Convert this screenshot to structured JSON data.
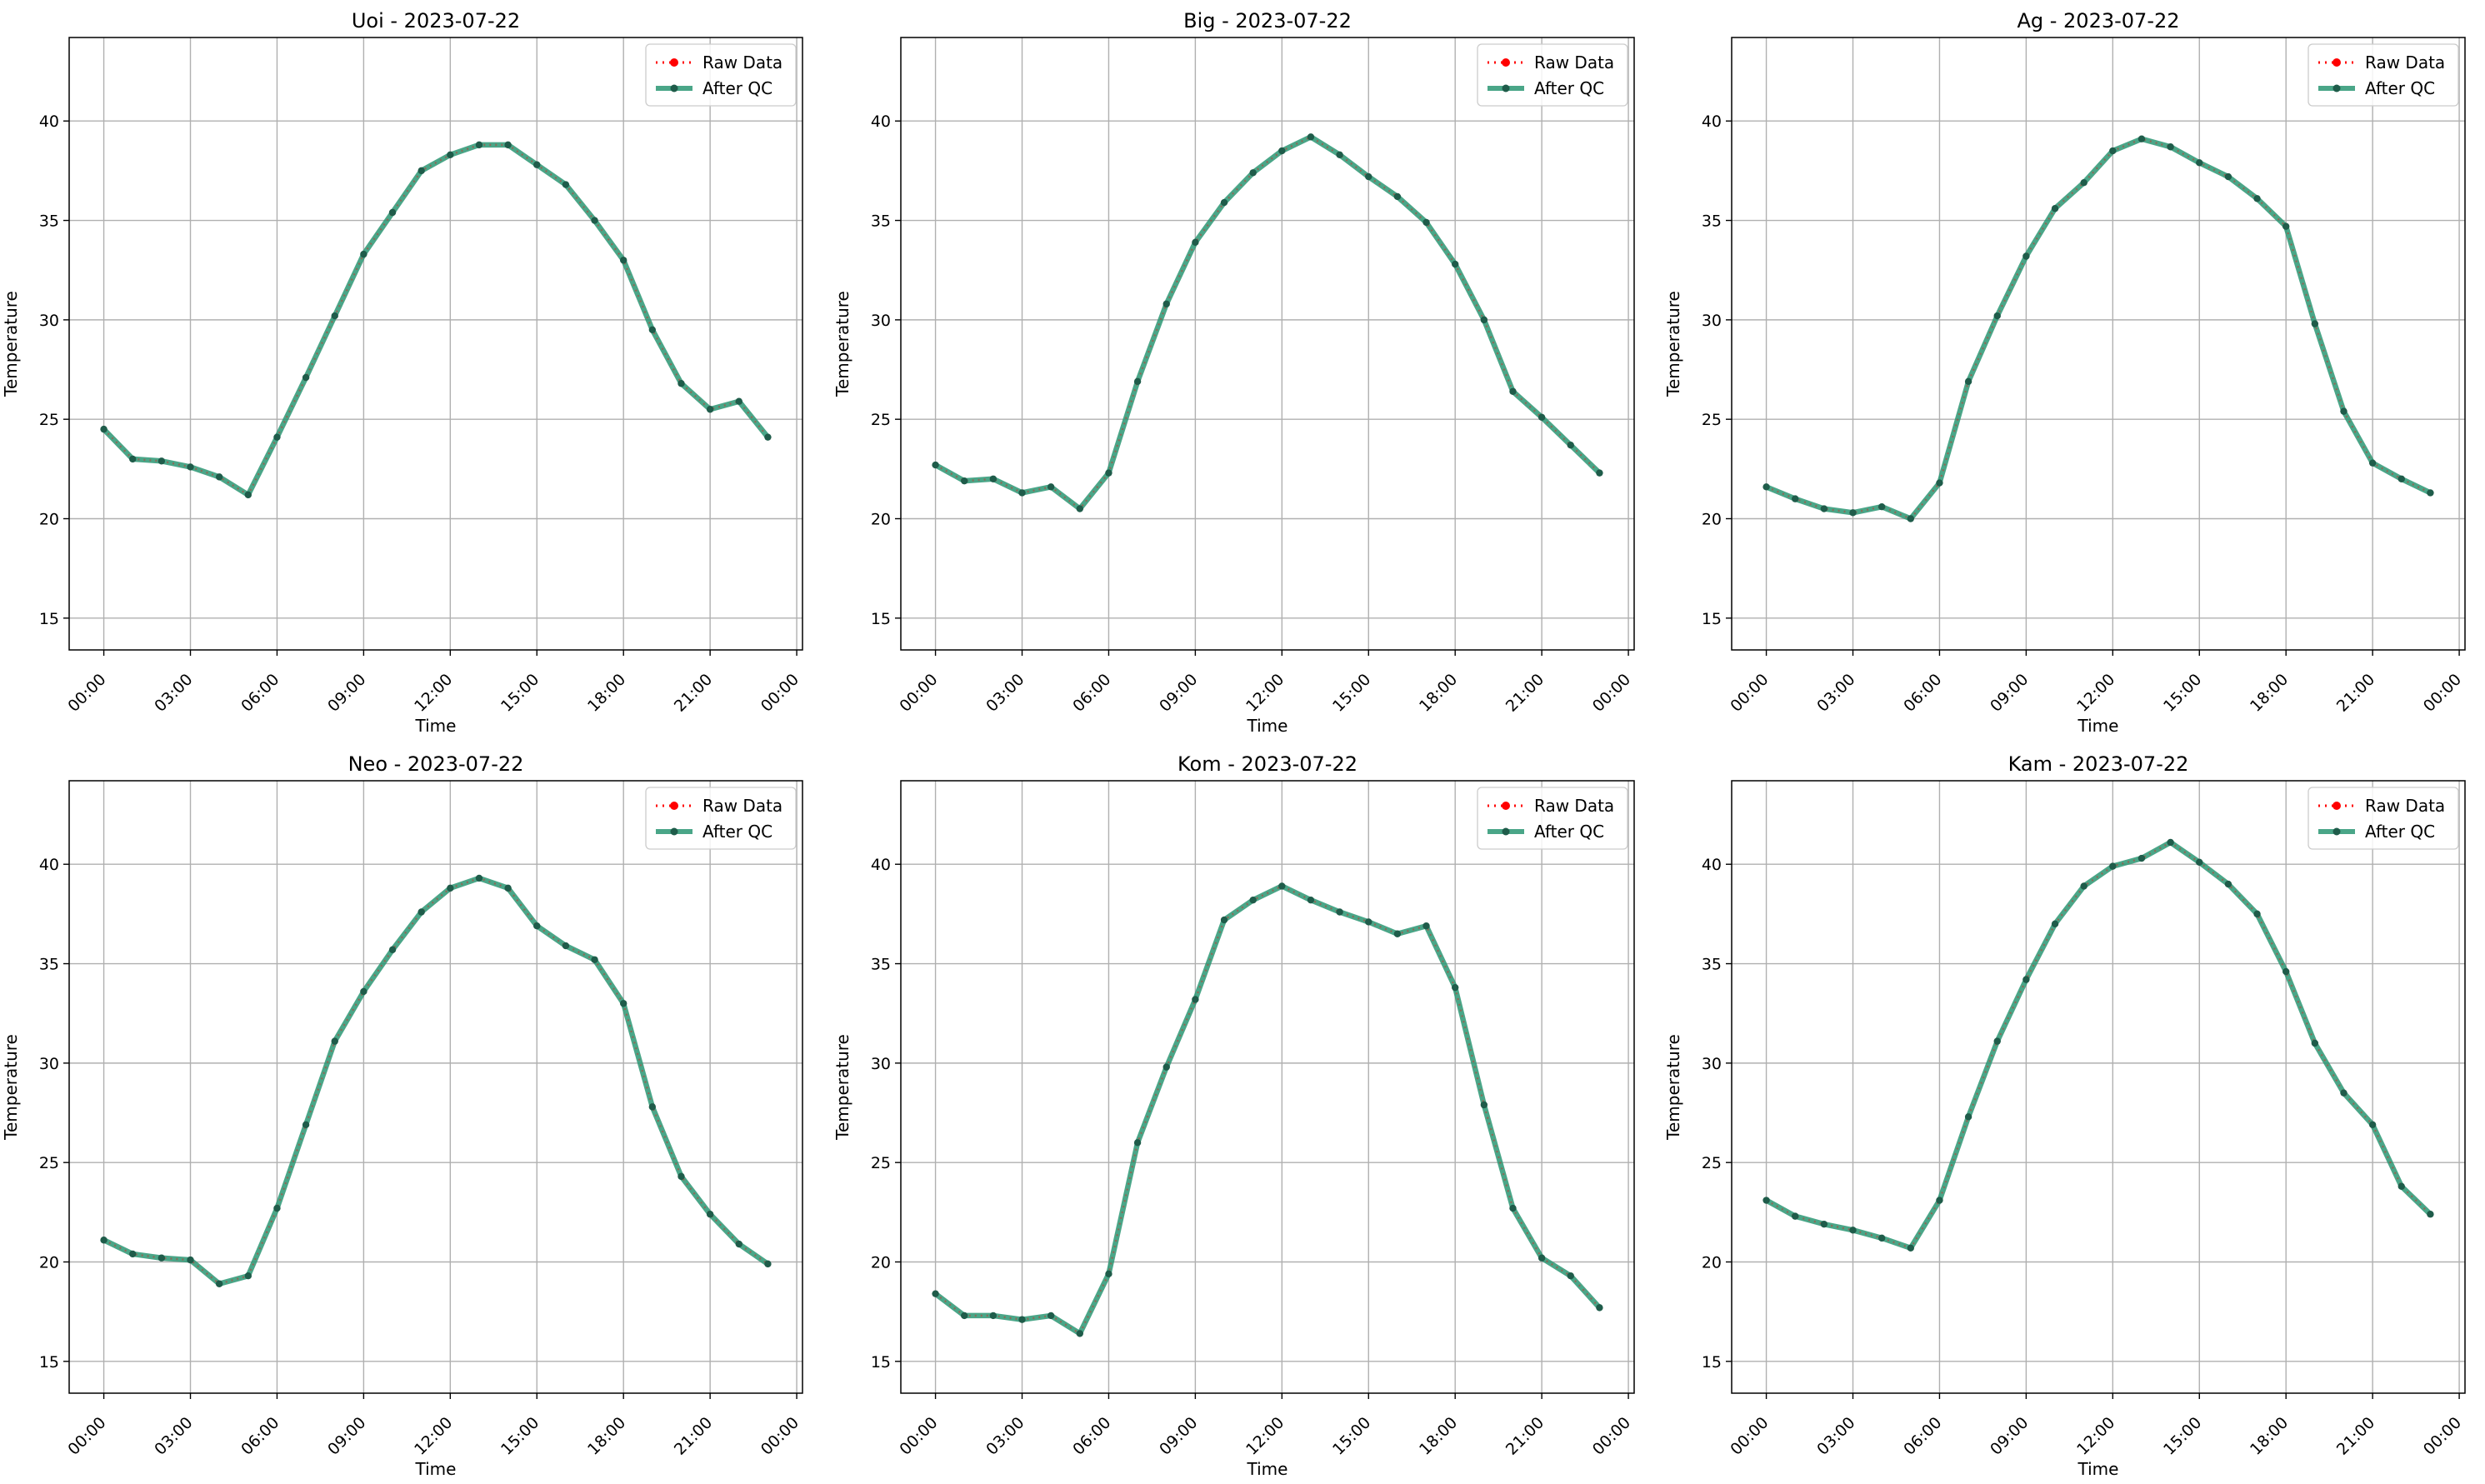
{
  "chart_data": [
    {
      "type": "line",
      "title": "Uoi - 2023-07-22",
      "xlabel": "Time",
      "ylabel": "Temperature",
      "x": [
        "00:00",
        "01:00",
        "02:00",
        "03:00",
        "04:00",
        "05:00",
        "06:00",
        "07:00",
        "08:00",
        "09:00",
        "10:00",
        "11:00",
        "12:00",
        "13:00",
        "14:00",
        "15:00",
        "16:00",
        "17:00",
        "18:00",
        "19:00",
        "20:00",
        "21:00",
        "22:00",
        "23:00"
      ],
      "xticks": [
        "00:00",
        "03:00",
        "06:00",
        "09:00",
        "12:00",
        "15:00",
        "18:00",
        "21:00",
        "00:00"
      ],
      "yticks": [
        "15",
        "20",
        "25",
        "30",
        "35",
        "40"
      ],
      "ylim": [
        13.4,
        44.2
      ],
      "xlim": [
        -1.2,
        24.2
      ],
      "grid": true,
      "legend_position": "top-right",
      "series": [
        {
          "name": "Raw Data",
          "values": [
            24.5,
            23.0,
            22.9,
            22.6,
            22.1,
            21.2,
            24.1,
            27.1,
            30.2,
            33.3,
            35.4,
            37.5,
            38.3,
            38.8,
            38.8,
            37.8,
            36.8,
            35.0,
            33.0,
            29.5,
            26.8,
            25.5,
            25.9,
            24.1
          ]
        },
        {
          "name": "After QC",
          "values": [
            24.5,
            23.0,
            22.9,
            22.6,
            22.1,
            21.2,
            24.1,
            27.1,
            30.2,
            33.3,
            35.4,
            37.5,
            38.3,
            38.8,
            38.8,
            37.8,
            36.8,
            35.0,
            33.0,
            29.5,
            26.8,
            25.5,
            25.9,
            24.1
          ]
        }
      ]
    },
    {
      "type": "line",
      "title": "Big - 2023-07-22",
      "xlabel": "Time",
      "ylabel": "Temperature",
      "x": [
        "00:00",
        "01:00",
        "02:00",
        "03:00",
        "04:00",
        "05:00",
        "06:00",
        "07:00",
        "08:00",
        "09:00",
        "10:00",
        "11:00",
        "12:00",
        "13:00",
        "14:00",
        "15:00",
        "16:00",
        "17:00",
        "18:00",
        "19:00",
        "20:00",
        "21:00",
        "22:00",
        "23:00"
      ],
      "xticks": [
        "00:00",
        "03:00",
        "06:00",
        "09:00",
        "12:00",
        "15:00",
        "18:00",
        "21:00",
        "00:00"
      ],
      "yticks": [
        "15",
        "20",
        "25",
        "30",
        "35",
        "40"
      ],
      "ylim": [
        13.4,
        44.2
      ],
      "xlim": [
        -1.2,
        24.2
      ],
      "grid": true,
      "legend_position": "top-right",
      "series": [
        {
          "name": "Raw Data",
          "values": [
            22.7,
            21.9,
            22.0,
            21.3,
            21.6,
            20.5,
            22.3,
            26.9,
            30.8,
            33.9,
            35.9,
            37.4,
            38.5,
            39.2,
            38.3,
            37.2,
            36.2,
            34.9,
            32.8,
            30.0,
            26.4,
            25.1,
            23.7,
            22.3
          ]
        },
        {
          "name": "After QC",
          "values": [
            22.7,
            21.9,
            22.0,
            21.3,
            21.6,
            20.5,
            22.3,
            26.9,
            30.8,
            33.9,
            35.9,
            37.4,
            38.5,
            39.2,
            38.3,
            37.2,
            36.2,
            34.9,
            32.8,
            30.0,
            26.4,
            25.1,
            23.7,
            22.3
          ]
        }
      ]
    },
    {
      "type": "line",
      "title": "Ag - 2023-07-22",
      "xlabel": "Time",
      "ylabel": "Temperature",
      "x": [
        "00:00",
        "01:00",
        "02:00",
        "03:00",
        "04:00",
        "05:00",
        "06:00",
        "07:00",
        "08:00",
        "09:00",
        "10:00",
        "11:00",
        "12:00",
        "13:00",
        "14:00",
        "15:00",
        "16:00",
        "17:00",
        "18:00",
        "19:00",
        "20:00",
        "21:00",
        "22:00",
        "23:00"
      ],
      "xticks": [
        "00:00",
        "03:00",
        "06:00",
        "09:00",
        "12:00",
        "15:00",
        "18:00",
        "21:00",
        "00:00"
      ],
      "yticks": [
        "15",
        "20",
        "25",
        "30",
        "35",
        "40"
      ],
      "ylim": [
        13.4,
        44.2
      ],
      "xlim": [
        -1.2,
        24.2
      ],
      "grid": true,
      "legend_position": "top-right",
      "series": [
        {
          "name": "Raw Data",
          "values": [
            21.6,
            21.0,
            20.5,
            20.3,
            20.6,
            20.0,
            21.8,
            26.9,
            30.2,
            33.2,
            35.6,
            36.9,
            38.5,
            39.1,
            38.7,
            37.9,
            37.2,
            36.1,
            34.7,
            29.8,
            25.4,
            22.8,
            22.0,
            21.3
          ]
        },
        {
          "name": "After QC",
          "values": [
            21.6,
            21.0,
            20.5,
            20.3,
            20.6,
            20.0,
            21.8,
            26.9,
            30.2,
            33.2,
            35.6,
            36.9,
            38.5,
            39.1,
            38.7,
            37.9,
            37.2,
            36.1,
            34.7,
            29.8,
            25.4,
            22.8,
            22.0,
            21.3
          ]
        }
      ]
    },
    {
      "type": "line",
      "title": "Neo - 2023-07-22",
      "xlabel": "Time",
      "ylabel": "Temperature",
      "x": [
        "00:00",
        "01:00",
        "02:00",
        "03:00",
        "04:00",
        "05:00",
        "06:00",
        "07:00",
        "08:00",
        "09:00",
        "10:00",
        "11:00",
        "12:00",
        "13:00",
        "14:00",
        "15:00",
        "16:00",
        "17:00",
        "18:00",
        "19:00",
        "20:00",
        "21:00",
        "22:00",
        "23:00"
      ],
      "xticks": [
        "00:00",
        "03:00",
        "06:00",
        "09:00",
        "12:00",
        "15:00",
        "18:00",
        "21:00",
        "00:00"
      ],
      "yticks": [
        "15",
        "20",
        "25",
        "30",
        "35",
        "40"
      ],
      "ylim": [
        13.4,
        44.2
      ],
      "xlim": [
        -1.2,
        24.2
      ],
      "grid": true,
      "legend_position": "top-right",
      "series": [
        {
          "name": "Raw Data",
          "values": [
            21.1,
            20.4,
            20.2,
            20.1,
            18.9,
            19.3,
            22.7,
            26.9,
            31.1,
            33.6,
            35.7,
            37.6,
            38.8,
            39.3,
            38.8,
            36.9,
            35.9,
            35.2,
            33.0,
            27.8,
            24.3,
            22.4,
            20.9,
            19.9
          ]
        },
        {
          "name": "After QC",
          "values": [
            21.1,
            20.4,
            20.2,
            20.1,
            18.9,
            19.3,
            22.7,
            26.9,
            31.1,
            33.6,
            35.7,
            37.6,
            38.8,
            39.3,
            38.8,
            36.9,
            35.9,
            35.2,
            33.0,
            27.8,
            24.3,
            22.4,
            20.9,
            19.9
          ]
        }
      ]
    },
    {
      "type": "line",
      "title": "Kom - 2023-07-22",
      "xlabel": "Time",
      "ylabel": "Temperature",
      "x": [
        "00:00",
        "01:00",
        "02:00",
        "03:00",
        "04:00",
        "05:00",
        "06:00",
        "07:00",
        "08:00",
        "09:00",
        "10:00",
        "11:00",
        "12:00",
        "13:00",
        "14:00",
        "15:00",
        "16:00",
        "17:00",
        "18:00",
        "19:00",
        "20:00",
        "21:00",
        "22:00",
        "23:00"
      ],
      "xticks": [
        "00:00",
        "03:00",
        "06:00",
        "09:00",
        "12:00",
        "15:00",
        "18:00",
        "21:00",
        "00:00"
      ],
      "yticks": [
        "15",
        "20",
        "25",
        "30",
        "35",
        "40"
      ],
      "ylim": [
        13.4,
        44.2
      ],
      "xlim": [
        -1.2,
        24.2
      ],
      "grid": true,
      "legend_position": "top-right",
      "series": [
        {
          "name": "Raw Data",
          "values": [
            18.4,
            17.3,
            17.3,
            17.1,
            17.3,
            16.4,
            19.4,
            26.0,
            29.8,
            33.2,
            37.2,
            38.2,
            38.9,
            38.2,
            37.6,
            37.1,
            36.5,
            36.9,
            33.8,
            27.9,
            22.7,
            20.2,
            19.3,
            17.7
          ]
        },
        {
          "name": "After QC",
          "values": [
            18.4,
            17.3,
            17.3,
            17.1,
            17.3,
            16.4,
            19.4,
            26.0,
            29.8,
            33.2,
            37.2,
            38.2,
            38.9,
            38.2,
            37.6,
            37.1,
            36.5,
            36.9,
            33.8,
            27.9,
            22.7,
            20.2,
            19.3,
            17.7
          ]
        }
      ]
    },
    {
      "type": "line",
      "title": "Kam - 2023-07-22",
      "xlabel": "Time",
      "ylabel": "Temperature",
      "x": [
        "00:00",
        "01:00",
        "02:00",
        "03:00",
        "04:00",
        "05:00",
        "06:00",
        "07:00",
        "08:00",
        "09:00",
        "10:00",
        "11:00",
        "12:00",
        "13:00",
        "14:00",
        "15:00",
        "16:00",
        "17:00",
        "18:00",
        "19:00",
        "20:00",
        "21:00",
        "22:00",
        "23:00"
      ],
      "xticks": [
        "00:00",
        "03:00",
        "06:00",
        "09:00",
        "12:00",
        "15:00",
        "18:00",
        "21:00",
        "00:00"
      ],
      "yticks": [
        "15",
        "20",
        "25",
        "30",
        "35",
        "40"
      ],
      "ylim": [
        13.4,
        44.2
      ],
      "xlim": [
        -1.2,
        24.2
      ],
      "grid": true,
      "legend_position": "top-right",
      "series": [
        {
          "name": "Raw Data",
          "values": [
            23.1,
            22.3,
            21.9,
            21.6,
            21.2,
            20.7,
            23.1,
            27.3,
            31.1,
            34.2,
            37.0,
            38.9,
            39.9,
            40.3,
            41.1,
            40.1,
            39.0,
            37.5,
            34.6,
            31.0,
            28.5,
            26.9,
            23.8,
            22.4
          ]
        },
        {
          "name": "After QC",
          "values": [
            23.1,
            22.3,
            21.9,
            21.6,
            21.2,
            20.7,
            23.1,
            27.3,
            31.1,
            34.2,
            37.0,
            38.9,
            39.9,
            40.3,
            41.1,
            40.1,
            39.0,
            37.5,
            34.6,
            31.0,
            28.5,
            26.9,
            23.8,
            22.4
          ]
        }
      ]
    }
  ],
  "colors": {
    "raw": "#ff0000",
    "qc": "#2a9673",
    "qc_marker": "#1f5c4a",
    "grid": "#b0b0b0",
    "axis": "#000000"
  }
}
